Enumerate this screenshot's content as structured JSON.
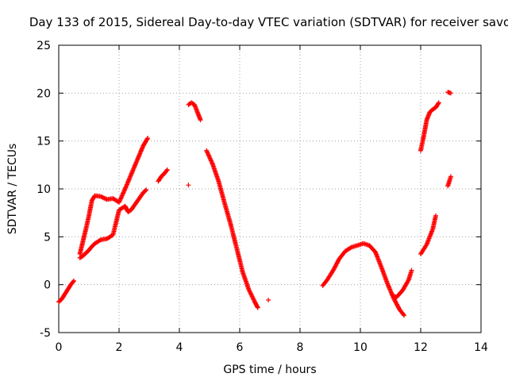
{
  "chart_data": {
    "type": "scatter",
    "title": "Day 133 of 2015, Sidereal Day-to-day VTEC variation (SDTVAR) for receiver savo",
    "xlabel": "GPS time / hours",
    "ylabel": "SDTVAR / TECUs",
    "xlim": [
      0,
      14
    ],
    "ylim": [
      -5,
      25
    ],
    "xticks": [
      0,
      2,
      4,
      6,
      8,
      10,
      12,
      14
    ],
    "yticks": [
      -5,
      0,
      5,
      10,
      15,
      20,
      25
    ],
    "xtick_labels": [
      "0",
      "2",
      "4",
      "6",
      "8",
      "10",
      "12",
      "14"
    ],
    "ytick_labels": [
      "-5",
      "0",
      "5",
      "10",
      "15",
      "20",
      "25"
    ],
    "grid": true,
    "marker": "plus",
    "color": "#ff0000",
    "series": [
      {
        "x": [
          0.0,
          0.1,
          0.2,
          0.3,
          0.4,
          0.5
        ],
        "y": [
          -1.8,
          -1.5,
          -1.0,
          -0.5,
          0.0,
          0.4
        ]
      },
      {
        "x": [
          0.7,
          0.8,
          0.9,
          1.0,
          1.1,
          1.2,
          1.4,
          1.6,
          1.8,
          2.0,
          2.2,
          2.3,
          2.4,
          2.6,
          2.8,
          2.9
        ],
        "y": [
          2.8,
          3.0,
          3.3,
          3.6,
          4.0,
          4.3,
          4.7,
          4.8,
          5.2,
          7.8,
          8.2,
          7.6,
          7.8,
          8.7,
          9.6,
          9.9
        ]
      },
      {
        "x": [
          0.7,
          0.8,
          0.9,
          1.0,
          1.1,
          1.2,
          1.4,
          1.6,
          1.8,
          2.0,
          2.2,
          2.4,
          2.6,
          2.8,
          2.95
        ],
        "y": [
          3.2,
          4.5,
          5.8,
          7.2,
          8.8,
          9.3,
          9.2,
          8.9,
          9.0,
          8.6,
          10.0,
          11.5,
          13.0,
          14.5,
          15.3
        ]
      },
      {
        "x": [
          3.3,
          3.4,
          3.5,
          3.6
        ],
        "y": [
          10.8,
          11.3,
          11.6,
          12.0
        ]
      },
      {
        "x": [
          4.3
        ],
        "y": [
          10.4
        ]
      },
      {
        "x": [
          4.3,
          4.4,
          4.5,
          4.6,
          4.7
        ],
        "y": [
          18.8,
          19.0,
          18.8,
          18.0,
          17.2
        ]
      },
      {
        "x": [
          4.9,
          5.1,
          5.3,
          5.5,
          5.7,
          5.9,
          6.1,
          6.3,
          6.5,
          6.6
        ],
        "y": [
          14.0,
          12.6,
          10.8,
          8.5,
          6.3,
          3.8,
          1.3,
          -0.5,
          -1.8,
          -2.4
        ]
      },
      {
        "x": [
          6.95
        ],
        "y": [
          -1.6
        ]
      },
      {
        "x": [
          8.75,
          8.9,
          9.1,
          9.3,
          9.5,
          9.7,
          9.9,
          10.1,
          10.3,
          10.5,
          10.7,
          10.9,
          11.1,
          11.3,
          11.45
        ],
        "y": [
          -0.1,
          0.5,
          1.5,
          2.7,
          3.5,
          3.9,
          4.1,
          4.3,
          4.1,
          3.4,
          1.8,
          0.1,
          -1.4,
          -2.6,
          -3.2
        ]
      },
      {
        "x": [
          11.1,
          11.2,
          11.4,
          11.6,
          11.7
        ],
        "y": [
          -1.2,
          -1.3,
          -0.6,
          0.5,
          1.5
        ]
      },
      {
        "x": [
          12.0,
          12.2,
          12.4,
          12.5
        ],
        "y": [
          3.2,
          4.2,
          5.8,
          7.2
        ]
      },
      {
        "x": [
          12.0,
          12.1,
          12.2,
          12.3,
          12.4,
          12.5,
          12.6
        ],
        "y": [
          14.0,
          15.5,
          17.2,
          18.0,
          18.3,
          18.5,
          19.0
        ]
      },
      {
        "x": [
          12.9,
          13.0
        ],
        "y": [
          10.3,
          11.3
        ]
      },
      {
        "x": [
          12.9,
          13.0
        ],
        "y": [
          20.1,
          20.0
        ]
      }
    ]
  }
}
